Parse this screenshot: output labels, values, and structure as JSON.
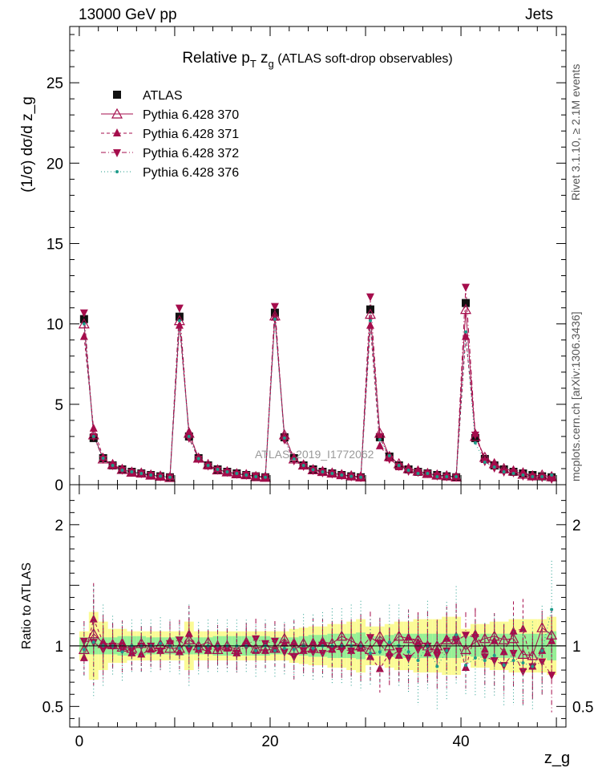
{
  "header": {
    "left": "13000 GeV pp",
    "right": "Jets",
    "side_top": "Rivet 3.1.10, ≥ 2.1M events",
    "side_bottom": "mcplots.cern.ch [arXiv:1306.3436]"
  },
  "colors": {
    "data": "#000000",
    "mc": "#a50d4c",
    "mc376": "#1e9b8a",
    "band_outer": "#fbfb96",
    "band_inner": "#96f096"
  },
  "chart_data": [
    {
      "id": "main",
      "type": "line",
      "title": "Relative p_T z_g (ATLAS soft-drop observables)",
      "title_parts": {
        "a": "Relative p",
        "sub": "T",
        "b": " z",
        "sub2": "g",
        "c": " (ATLAS soft-drop observables)"
      },
      "ylabel": "(1/σ) dσ/d z_g",
      "xlabel": "z_g",
      "watermark": "ATLAS_2019_I1772062",
      "xlim": [
        -1,
        51
      ],
      "ylim": [
        0,
        28.5
      ],
      "yticks": [
        0,
        5,
        10,
        15,
        20,
        25
      ],
      "xticks": [
        0,
        20,
        40
      ],
      "legend_position": "top-left",
      "x": [
        0.5,
        1.5,
        2.5,
        3.5,
        4.5,
        5.5,
        6.5,
        7.5,
        8.5,
        9.5,
        10.5,
        11.5,
        12.5,
        13.5,
        14.5,
        15.5,
        16.5,
        17.5,
        18.5,
        19.5,
        20.5,
        21.5,
        22.5,
        23.5,
        24.5,
        25.5,
        26.5,
        27.5,
        28.5,
        29.5,
        30.5,
        31.5,
        32.5,
        33.5,
        34.5,
        35.5,
        36.5,
        37.5,
        38.5,
        39.5,
        40.5,
        41.5,
        42.5,
        43.5,
        44.5,
        45.5,
        46.5,
        47.5,
        48.5,
        49.5
      ],
      "series": [
        {
          "name": "ATLAS",
          "style": "data",
          "values": [
            10.3,
            2.9,
            1.65,
            1.2,
            0.95,
            0.8,
            0.7,
            0.6,
            0.52,
            0.46,
            10.45,
            3.0,
            1.65,
            1.2,
            0.95,
            0.8,
            0.7,
            0.6,
            0.52,
            0.46,
            10.7,
            2.95,
            1.65,
            1.2,
            0.95,
            0.8,
            0.7,
            0.6,
            0.52,
            0.46,
            10.9,
            2.95,
            1.75,
            1.2,
            0.95,
            0.8,
            0.7,
            0.6,
            0.52,
            0.46,
            11.3,
            2.9,
            1.6,
            1.2,
            0.95,
            0.8,
            0.7,
            0.6,
            0.52,
            0.46
          ]
        },
        {
          "name": "Pythia 6.428 370",
          "style": "open-triangle-solid",
          "values": [
            10.0,
            3.1,
            1.6,
            1.25,
            0.95,
            0.78,
            0.72,
            0.6,
            0.53,
            0.45,
            10.2,
            3.2,
            1.65,
            1.25,
            0.92,
            0.8,
            0.68,
            0.62,
            0.5,
            0.46,
            10.5,
            3.1,
            1.6,
            1.22,
            0.93,
            0.82,
            0.72,
            0.62,
            0.55,
            0.48,
            10.6,
            3.2,
            1.75,
            1.3,
            1.0,
            0.85,
            0.7,
            0.6,
            0.55,
            0.48,
            10.9,
            3.0,
            1.7,
            1.3,
            1.0,
            0.85,
            0.65,
            0.55,
            0.6,
            0.5
          ]
        },
        {
          "name": "Pythia 6.428 371",
          "style": "filled-triangle-dashed",
          "values": [
            9.2,
            3.5,
            1.7,
            1.2,
            0.98,
            0.75,
            0.65,
            0.58,
            0.5,
            0.48,
            9.9,
            3.3,
            1.6,
            1.15,
            0.96,
            0.78,
            0.66,
            0.62,
            0.5,
            0.44,
            10.4,
            3.0,
            1.7,
            1.15,
            0.98,
            0.82,
            0.68,
            0.6,
            0.5,
            0.45,
            9.9,
            2.4,
            1.65,
            1.1,
            1.02,
            0.82,
            0.66,
            0.58,
            0.55,
            0.5,
            9.2,
            3.2,
            1.55,
            1.25,
            0.9,
            0.9,
            0.8,
            0.5,
            0.5,
            0.48
          ]
        },
        {
          "name": "Pythia 6.428 372",
          "style": "filled-down-triangle-dashdot",
          "values": [
            10.7,
            3.0,
            1.6,
            1.2,
            0.92,
            0.78,
            0.7,
            0.6,
            0.5,
            0.47,
            11.0,
            2.9,
            1.6,
            1.17,
            0.92,
            0.78,
            0.66,
            0.6,
            0.55,
            0.47,
            11.1,
            2.8,
            1.5,
            1.15,
            0.9,
            0.75,
            0.68,
            0.58,
            0.5,
            0.45,
            11.7,
            3.0,
            1.6,
            1.15,
            0.85,
            0.78,
            0.7,
            0.55,
            0.5,
            0.48,
            12.3,
            3.1,
            1.45,
            1.05,
            0.8,
            0.75,
            0.55,
            0.5,
            0.45,
            0.35
          ]
        },
        {
          "name": "Pythia 6.428 376",
          "style": "dot-dotted",
          "values": [
            10.0,
            3.0,
            1.65,
            1.2,
            0.9,
            0.8,
            0.7,
            0.6,
            0.53,
            0.46,
            10.2,
            3.0,
            1.62,
            1.2,
            0.95,
            0.8,
            0.7,
            0.6,
            0.5,
            0.46,
            10.3,
            2.9,
            1.6,
            1.2,
            0.93,
            0.8,
            0.7,
            0.6,
            0.52,
            0.46,
            10.2,
            2.8,
            1.8,
            1.2,
            0.9,
            0.7,
            0.7,
            0.5,
            0.5,
            0.5,
            9.5,
            2.6,
            1.4,
            1.1,
            0.8,
            0.7,
            0.6,
            0.5,
            0.5,
            0.6
          ]
        }
      ]
    },
    {
      "id": "ratio",
      "type": "line",
      "ylabel": "Ratio to ATLAS",
      "xlabel": "z_g",
      "xlim": [
        -1,
        51
      ],
      "ylim": [
        0.33,
        2.33
      ],
      "yticks": [
        0.5,
        1,
        1.5,
        2
      ],
      "ytick_labels": [
        "0.5",
        "1",
        "2"
      ],
      "ytick_label_values": [
        0.5,
        1,
        2
      ],
      "xticks": [
        0,
        20,
        40
      ],
      "band_inner_half": [
        0.07,
        0.07,
        0.07,
        0.07,
        0.08,
        0.08,
        0.08,
        0.07,
        0.07,
        0.07,
        0.08,
        0.07,
        0.07,
        0.07,
        0.08,
        0.08,
        0.08,
        0.08,
        0.08,
        0.08,
        0.07,
        0.07,
        0.07,
        0.08,
        0.09,
        0.09,
        0.1,
        0.1,
        0.1,
        0.11,
        0.08,
        0.08,
        0.09,
        0.1,
        0.1,
        0.1,
        0.1,
        0.1,
        0.1,
        0.1,
        0.08,
        0.09,
        0.1,
        0.1,
        0.1,
        0.1,
        0.1,
        0.1,
        0.1,
        0.12
      ],
      "band_outer_half": [
        0.12,
        0.28,
        0.2,
        0.14,
        0.14,
        0.12,
        0.12,
        0.12,
        0.12,
        0.12,
        0.12,
        0.2,
        0.12,
        0.12,
        0.12,
        0.12,
        0.12,
        0.12,
        0.12,
        0.12,
        0.12,
        0.12,
        0.14,
        0.15,
        0.16,
        0.16,
        0.18,
        0.18,
        0.2,
        0.22,
        0.16,
        0.16,
        0.18,
        0.2,
        0.2,
        0.22,
        0.22,
        0.22,
        0.24,
        0.24,
        0.14,
        0.18,
        0.18,
        0.2,
        0.2,
        0.22,
        0.22,
        0.22,
        0.22,
        0.24
      ],
      "series": [
        {
          "name": "Pythia 6.428 370",
          "values": [
            0.97,
            1.1,
            1.02,
            1.01,
            0.99,
            0.98,
            1.02,
            0.99,
            1.01,
            0.98,
            0.98,
            1.05,
            1.0,
            1.03,
            0.97,
            1.0,
            0.97,
            1.03,
            0.98,
            1.0,
            0.98,
            1.06,
            0.97,
            1.02,
            0.98,
            1.03,
            1.02,
            1.08,
            1.04,
            1.0,
            0.97,
            1.08,
            1.0,
            1.08,
            1.06,
            1.05,
            1.0,
            1.0,
            1.05,
            1.05,
            0.97,
            1.03,
            1.06,
            1.08,
            1.05,
            1.06,
            0.93,
            0.92,
            1.15,
            1.09
          ]
        },
        {
          "name": "Pythia 6.428 371",
          "values": [
            0.9,
            1.22,
            1.03,
            1.0,
            1.03,
            0.94,
            0.93,
            0.97,
            0.96,
            1.04,
            0.95,
            1.1,
            0.97,
            0.96,
            1.01,
            0.98,
            0.94,
            1.03,
            0.96,
            0.96,
            0.97,
            1.02,
            1.03,
            0.96,
            1.03,
            1.03,
            0.97,
            1.0,
            0.96,
            0.98,
            0.91,
            0.81,
            0.94,
            0.92,
            1.07,
            1.03,
            0.94,
            0.97,
            1.06,
            1.08,
            0.82,
            1.1,
            0.97,
            1.04,
            0.95,
            1.12,
            1.14,
            0.83,
            0.96,
            1.04
          ]
        },
        {
          "name": "Pythia 6.428 372",
          "values": [
            1.04,
            1.03,
            0.97,
            1.0,
            0.97,
            0.97,
            1.0,
            1.0,
            0.96,
            1.02,
            1.05,
            0.97,
            0.97,
            0.97,
            0.97,
            0.98,
            0.94,
            1.0,
            1.06,
            1.02,
            1.04,
            0.95,
            0.91,
            0.96,
            0.95,
            0.94,
            0.97,
            0.97,
            0.96,
            0.98,
            1.07,
            1.02,
            0.91,
            0.96,
            0.9,
            0.97,
            1.0,
            0.92,
            0.96,
            1.04,
            1.09,
            1.07,
            0.91,
            0.88,
            0.84,
            0.94,
            0.79,
            0.83,
            0.87,
            0.76
          ]
        },
        {
          "name": "Pythia 6.428 376",
          "values": [
            0.97,
            1.03,
            1.0,
            1.0,
            0.95,
            1.0,
            1.0,
            1.0,
            1.02,
            1.0,
            0.98,
            1.0,
            0.98,
            1.0,
            1.0,
            1.0,
            1.0,
            1.0,
            0.96,
            1.0,
            0.96,
            0.98,
            0.97,
            1.0,
            0.98,
            1.0,
            1.0,
            1.0,
            1.0,
            1.0,
            0.94,
            0.95,
            1.03,
            1.0,
            0.95,
            0.88,
            1.0,
            0.83,
            0.96,
            1.09,
            0.84,
            0.9,
            0.88,
            0.92,
            0.84,
            0.88,
            0.86,
            0.83,
            0.96,
            1.3
          ]
        }
      ]
    }
  ]
}
